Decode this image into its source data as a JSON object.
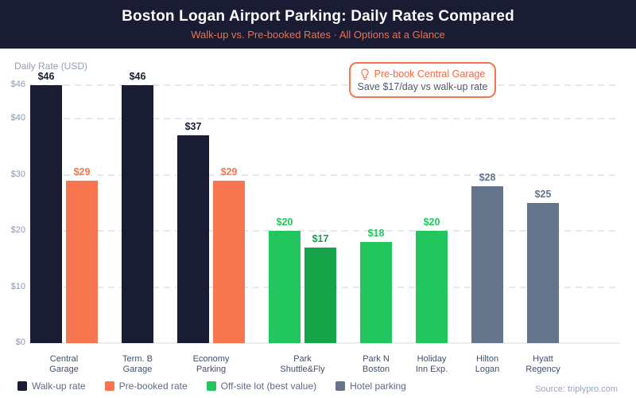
{
  "header": {
    "title": "Boston Logan Airport Parking: Daily Rates Compared",
    "subtitle": "Walk-up vs. Pre-booked Rates · All Options at a Glance"
  },
  "axis_label": "Daily Rate (USD)",
  "annotation": {
    "icon": "lightbulb-icon",
    "title": "Pre-book Central Garage",
    "text": "Save $17/day vs walk-up rate"
  },
  "source": "Source: triplypro.com",
  "legend": [
    {
      "label": "Walk-up rate",
      "color": "#191c33"
    },
    {
      "label": "Pre-booked rate",
      "color": "#f7764f"
    },
    {
      "label": "Off-site lot (best value)",
      "color": "#22c55e"
    },
    {
      "label": "Hotel parking",
      "color": "#64748b"
    }
  ],
  "chart_data": {
    "type": "bar",
    "title": "Boston Logan Airport Parking: Daily Rates Compared",
    "subtitle": "Walk-up vs. Pre-booked Rates · All Options at a Glance",
    "xlabel": "",
    "ylabel": "Daily Rate (USD)",
    "ylim": [
      0,
      48
    ],
    "grid": true,
    "legend_position": "bottom-left",
    "y_ticks": [
      {
        "label": "$0",
        "value": 0
      },
      {
        "label": "$10",
        "value": 10
      },
      {
        "label": "$20",
        "value": 20
      },
      {
        "label": "$30",
        "value": 30
      },
      {
        "label": "$40",
        "value": 40
      },
      {
        "label": "$46",
        "value": 46
      }
    ],
    "series_colors": {
      "walkup": "#191c33",
      "prebooked": "#f7764f",
      "offsite": "#22c55e",
      "offsite_best": "#16a34a",
      "hotel": "#64748b"
    },
    "groups": [
      {
        "category_line1": "Central",
        "category_line2": "Garage",
        "bars": [
          {
            "label": "$46",
            "value": 46,
            "series": "walkup"
          },
          {
            "label": "$29",
            "value": 29,
            "series": "prebooked"
          }
        ]
      },
      {
        "category_line1": "Term. B",
        "category_line2": "Garage",
        "bars": [
          {
            "label": "$46",
            "value": 46,
            "series": "walkup"
          }
        ]
      },
      {
        "category_line1": "Economy",
        "category_line2": "Parking",
        "bars": [
          {
            "label": "$37",
            "value": 37,
            "series": "walkup"
          },
          {
            "label": "$29",
            "value": 29,
            "series": "prebooked"
          }
        ]
      },
      {
        "category_line1": "Park",
        "category_line2": "Shuttle&Fly",
        "bars": [
          {
            "label": "$20",
            "value": 20,
            "series": "offsite"
          },
          {
            "label": "$17",
            "value": 17,
            "series": "offsite_best"
          }
        ]
      },
      {
        "category_line1": "Park N",
        "category_line2": "Boston",
        "bars": [
          {
            "label": "$18",
            "value": 18,
            "series": "offsite"
          }
        ]
      },
      {
        "category_line1": "Holiday",
        "category_line2": "Inn Exp.",
        "bars": [
          {
            "label": "$20",
            "value": 20,
            "series": "offsite"
          }
        ]
      },
      {
        "category_line1": "Hilton",
        "category_line2": "Logan",
        "bars": [
          {
            "label": "$28",
            "value": 28,
            "series": "hotel"
          }
        ]
      },
      {
        "category_line1": "Hyatt",
        "category_line2": "Regency",
        "bars": [
          {
            "label": "$25",
            "value": 25,
            "series": "hotel"
          }
        ]
      }
    ]
  }
}
